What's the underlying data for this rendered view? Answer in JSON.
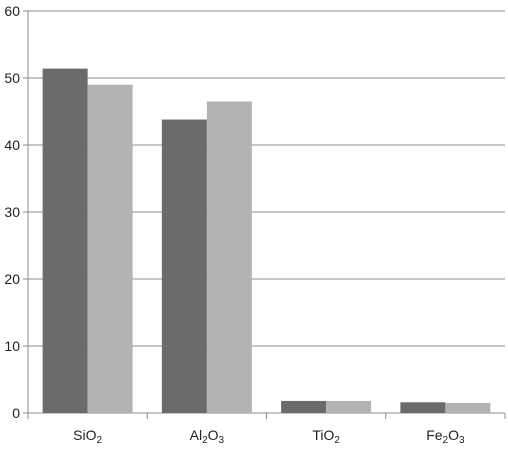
{
  "chart_data": {
    "type": "bar",
    "categories": [
      {
        "base": "Si",
        "sub": "O",
        "idx": "2"
      },
      {
        "base": "Al",
        "sub": "2",
        "mid": "O",
        "idx": "3"
      },
      {
        "base": "Ti",
        "sub": "O",
        "idx": "2"
      },
      {
        "base": "Fe",
        "sub": "2",
        "mid": "O",
        "idx": "3"
      }
    ],
    "series": [
      {
        "color": "#6b6b6b",
        "values": [
          51.4,
          43.8,
          1.8,
          1.6
        ]
      },
      {
        "color": "#b3b3b3",
        "values": [
          49.0,
          46.5,
          1.8,
          1.5
        ]
      }
    ],
    "ylim": [
      0,
      60
    ],
    "yticks": [
      0,
      10,
      20,
      30,
      40,
      50,
      60
    ],
    "title": "",
    "xlabel": "",
    "ylabel": "",
    "grid": true
  }
}
